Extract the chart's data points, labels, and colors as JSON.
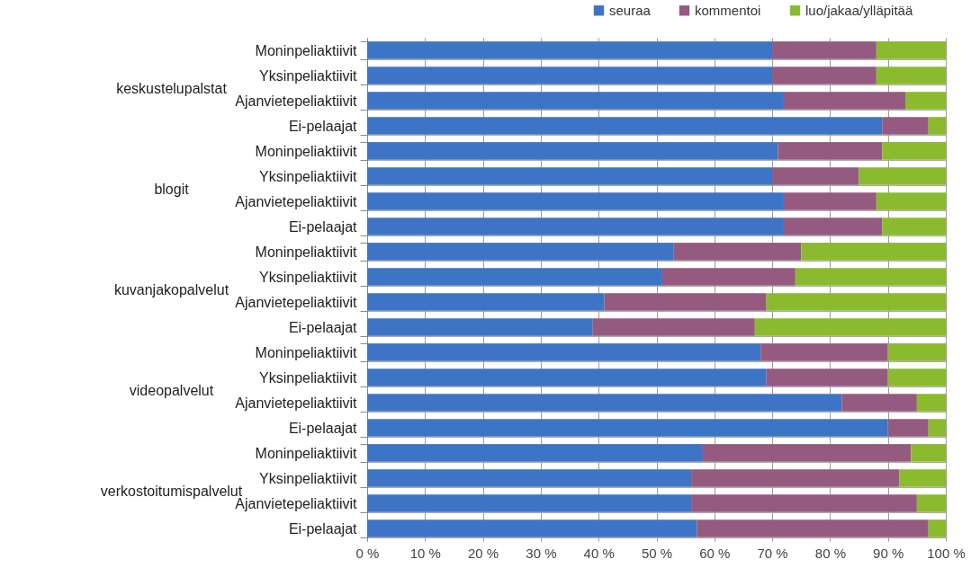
{
  "chart_data": [
    {
      "type": "bar",
      "orientation": "horizontal",
      "stacked": true,
      "ylabel": "keskustelupalstat",
      "categories": [
        "Moninpeliaktiivit",
        "Yksinpeliaktiivit",
        "Ajanvietepeliaktiivit",
        "Ei-pelaajat"
      ],
      "xlim": [
        0,
        100
      ],
      "xticks": [
        {
          "value": 0,
          "label": null
        },
        {
          "value": 10,
          "label": null
        },
        {
          "value": 20,
          "label": null
        },
        {
          "value": 30,
          "label": null
        },
        {
          "value": 40,
          "label": null
        },
        {
          "value": 50,
          "label": null
        },
        {
          "value": 60,
          "label": null
        },
        {
          "value": 70,
          "label": null
        },
        {
          "value": 80,
          "label": null
        },
        {
          "value": 90,
          "label": null
        },
        {
          "value": 100,
          "label": null
        }
      ],
      "tick_labels": "y",
      "grid": true,
      "legend": "top",
      "series": [
        {
          "name": "seuraa",
          "color": "#3d74c6",
          "values": [
            70,
            70,
            72,
            89
          ]
        },
        {
          "name": "kommentoi",
          "color": "#955a80",
          "values": [
            18,
            18,
            21,
            8
          ]
        },
        {
          "name": "luo/jakaa/ylläpitää",
          "color": "#8cba2e",
          "values": [
            12,
            12,
            7,
            3
          ]
        }
      ]
    },
    {
      "type": "bar",
      "orientation": "horizontal",
      "stacked": true,
      "ylabel": "blogit",
      "categories": [
        "Moninpeliaktiivit",
        "Yksinpeliaktiivit",
        "Ajanvietepeliaktiivit",
        "Ei-pelaajat"
      ],
      "xlim": [
        0,
        100
      ],
      "xticks": [
        {
          "value": 0,
          "label": null
        },
        {
          "value": 10,
          "label": null
        },
        {
          "value": 20,
          "label": null
        },
        {
          "value": 30,
          "label": null
        },
        {
          "value": 40,
          "label": null
        },
        {
          "value": 50,
          "label": null
        },
        {
          "value": 60,
          "label": null
        },
        {
          "value": 70,
          "label": null
        },
        {
          "value": 80,
          "label": null
        },
        {
          "value": 90,
          "label": null
        },
        {
          "value": 100,
          "label": null
        }
      ],
      "tick_labels": "y",
      "grid": true,
      "series": [
        {
          "name": "seuraa",
          "color": "#3d74c6",
          "values": [
            71,
            70,
            72,
            72
          ]
        },
        {
          "name": "kommentoi",
          "color": "#955a80",
          "values": [
            18,
            15,
            16,
            17
          ]
        },
        {
          "name": "luo/jakaa/ylläpitää",
          "color": "#8cba2e",
          "values": [
            11,
            15,
            12,
            11
          ]
        }
      ]
    },
    {
      "type": "bar",
      "orientation": "horizontal",
      "stacked": true,
      "ylabel": "kuvanjakopalvelut",
      "categories": [
        "Moninpeliaktiivit",
        "Yksinpeliaktiivit",
        "Ajanvietepeliaktiivit",
        "Ei-pelaajat"
      ],
      "xlim": [
        0,
        100
      ],
      "xticks": [
        {
          "value": 0,
          "label": null
        },
        {
          "value": 10,
          "label": null
        },
        {
          "value": 20,
          "label": null
        },
        {
          "value": 30,
          "label": null
        },
        {
          "value": 40,
          "label": null
        },
        {
          "value": 50,
          "label": null
        },
        {
          "value": 60,
          "label": null
        },
        {
          "value": 70,
          "label": null
        },
        {
          "value": 80,
          "label": null
        },
        {
          "value": 90,
          "label": null
        },
        {
          "value": 100,
          "label": null
        }
      ],
      "tick_labels": "y",
      "grid": true,
      "series": [
        {
          "name": "seuraa",
          "color": "#3d74c6",
          "values": [
            53,
            51,
            41,
            39
          ]
        },
        {
          "name": "kommentoi",
          "color": "#955a80",
          "values": [
            22,
            23,
            28,
            28
          ]
        },
        {
          "name": "luo/jakaa/ylläpitää",
          "color": "#8cba2e",
          "values": [
            25,
            26,
            31,
            33
          ]
        }
      ]
    },
    {
      "type": "bar",
      "orientation": "horizontal",
      "stacked": true,
      "ylabel": "videopalvelut",
      "categories": [
        "Moninpeliaktiivit",
        "Yksinpeliaktiivit",
        "Ajanvietepeliaktiivit",
        "Ei-pelaajat"
      ],
      "xlim": [
        0,
        100
      ],
      "xticks": [
        {
          "value": 0,
          "label": null
        },
        {
          "value": 10,
          "label": null
        },
        {
          "value": 20,
          "label": null
        },
        {
          "value": 30,
          "label": null
        },
        {
          "value": 40,
          "label": null
        },
        {
          "value": 50,
          "label": null
        },
        {
          "value": 60,
          "label": null
        },
        {
          "value": 70,
          "label": null
        },
        {
          "value": 80,
          "label": null
        },
        {
          "value": 90,
          "label": null
        },
        {
          "value": 100,
          "label": null
        }
      ],
      "tick_labels": "y",
      "grid": true,
      "series": [
        {
          "name": "seuraa",
          "color": "#3d74c6",
          "values": [
            68,
            69,
            82,
            90
          ]
        },
        {
          "name": "kommentoi",
          "color": "#955a80",
          "values": [
            22,
            21,
            13,
            7
          ]
        },
        {
          "name": "luo/jakaa/ylläpitää",
          "color": "#8cba2e",
          "values": [
            10,
            10,
            5,
            3
          ]
        }
      ]
    },
    {
      "type": "bar",
      "orientation": "horizontal",
      "stacked": true,
      "ylabel": "verkostoitumispalvelut",
      "categories": [
        "Moninpeliaktiivit",
        "Yksinpeliaktiivit",
        "Ajanvietepeliaktiivit",
        "Ei-pelaajat"
      ],
      "xlim": [
        0,
        100
      ],
      "xticks": [
        {
          "value": 0,
          "label": "0 %"
        },
        {
          "value": 10,
          "label": "10 %"
        },
        {
          "value": 20,
          "label": "20 %"
        },
        {
          "value": 30,
          "label": "30 %"
        },
        {
          "value": 40,
          "label": "40 %"
        },
        {
          "value": 50,
          "label": "50 %"
        },
        {
          "value": 60,
          "label": "60 %"
        },
        {
          "value": 70,
          "label": "70 %"
        },
        {
          "value": 80,
          "label": "80 %"
        },
        {
          "value": 90,
          "label": "90 %"
        },
        {
          "value": 100,
          "label": "100 %"
        }
      ],
      "grid": true,
      "series": [
        {
          "name": "seuraa",
          "color": "#3d74c6",
          "values": [
            58,
            56,
            56,
            57
          ]
        },
        {
          "name": "kommentoi",
          "color": "#955a80",
          "values": [
            36,
            36,
            39,
            40
          ]
        },
        {
          "name": "luo/jakaa/ylläpitää",
          "color": "#8cba2e",
          "values": [
            6,
            8,
            5,
            3
          ]
        }
      ]
    }
  ]
}
